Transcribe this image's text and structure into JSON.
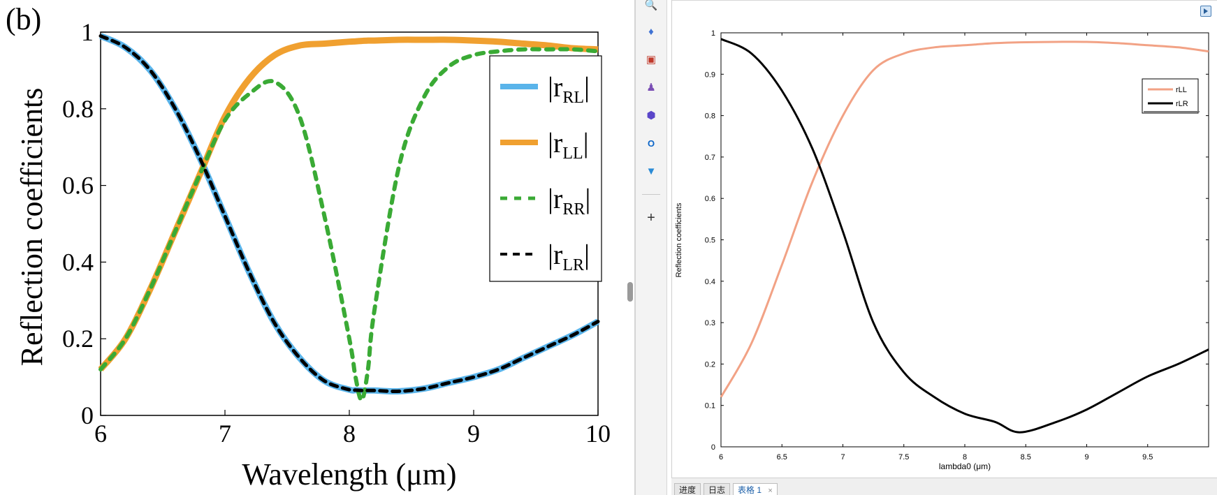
{
  "left_figure": {
    "panel_label": "(b)",
    "ylabel": "Reflection coefficients",
    "xlabel": "Wavelength (μm)",
    "x_ticks": [
      "6",
      "7",
      "8",
      "9",
      "10"
    ],
    "y_ticks": [
      "0",
      "0.2",
      "0.4",
      "0.6",
      "0.8",
      "1"
    ],
    "legend": [
      {
        "main": "|r",
        "sub": "RL",
        "end": "|"
      },
      {
        "main": "|r",
        "sub": "LL",
        "end": "|"
      },
      {
        "main": "|r",
        "sub": "RR",
        "end": "|"
      },
      {
        "main": "|r",
        "sub": "LR",
        "end": "|"
      }
    ]
  },
  "right_plot": {
    "ylabel": "Reflection coefficients",
    "xlabel": "lambda0 (μm)",
    "x_ticks": [
      "6",
      "6.5",
      "7",
      "7.5",
      "8",
      "8.5",
      "9",
      "9.5"
    ],
    "y_ticks": [
      "0",
      "0.1",
      "0.2",
      "0.3",
      "0.4",
      "0.5",
      "0.6",
      "0.7",
      "0.8",
      "0.9",
      "1"
    ],
    "legend": [
      "rLL",
      "rLR"
    ]
  },
  "toolbar": {
    "icons": [
      "search-icon",
      "tag-icon",
      "toolbox-icon",
      "users-icon",
      "cloud-sync-icon",
      "outlook-icon",
      "send-icon"
    ],
    "add_label": "+"
  },
  "bottom_tabs": [
    {
      "label": "进度"
    },
    {
      "label": "日志"
    },
    {
      "label": "表格 1",
      "close": "×"
    }
  ],
  "colors": {
    "rl": "#5ab4ea",
    "ll": "#f0a030",
    "rr": "#3aaa35",
    "lr": "#000000",
    "right_rll": "#f2a285",
    "right_rlr": "#000000"
  },
  "chart_data": [
    {
      "type": "line",
      "title": "(b)",
      "xlabel": "Wavelength (μm)",
      "ylabel": "Reflection coefficients",
      "xlim": [
        6,
        10
      ],
      "ylim": [
        0,
        1
      ],
      "grid": false,
      "legend_position": "top-right",
      "x": [
        6.0,
        6.2,
        6.4,
        6.6,
        6.8,
        7.0,
        7.2,
        7.4,
        7.6,
        7.8,
        8.0,
        8.05,
        8.1,
        8.15,
        8.2,
        8.4,
        8.6,
        8.8,
        9.0,
        9.2,
        9.4,
        9.6,
        9.8,
        10.0
      ],
      "series": [
        {
          "name": "|rRL|",
          "style": "solid",
          "values": [
            0.99,
            0.96,
            0.9,
            0.8,
            0.67,
            0.52,
            0.37,
            0.24,
            0.15,
            0.09,
            0.067,
            0.066,
            0.065,
            0.065,
            0.065,
            0.063,
            0.07,
            0.085,
            0.1,
            0.12,
            0.15,
            0.18,
            0.21,
            0.245
          ]
        },
        {
          "name": "|rLL|",
          "style": "solid",
          "values": [
            0.12,
            0.2,
            0.33,
            0.48,
            0.63,
            0.78,
            0.88,
            0.94,
            0.965,
            0.97,
            0.975,
            0.976,
            0.977,
            0.978,
            0.978,
            0.98,
            0.98,
            0.98,
            0.978,
            0.975,
            0.97,
            0.965,
            0.958,
            0.955
          ]
        },
        {
          "name": "|rRR|",
          "style": "dashed",
          "values": [
            0.12,
            0.2,
            0.33,
            0.48,
            0.63,
            0.77,
            0.84,
            0.87,
            0.78,
            0.52,
            0.2,
            0.1,
            0.04,
            0.12,
            0.27,
            0.65,
            0.83,
            0.91,
            0.94,
            0.95,
            0.955,
            0.955,
            0.955,
            0.95
          ]
        },
        {
          "name": "|rLR|",
          "style": "dashed",
          "values": [
            0.99,
            0.96,
            0.9,
            0.8,
            0.67,
            0.52,
            0.37,
            0.24,
            0.15,
            0.09,
            0.067,
            0.066,
            0.065,
            0.065,
            0.065,
            0.063,
            0.07,
            0.085,
            0.1,
            0.12,
            0.15,
            0.18,
            0.21,
            0.245
          ]
        }
      ]
    },
    {
      "type": "line",
      "title": "",
      "xlabel": "lambda0 (μm)",
      "ylabel": "Reflection coefficients",
      "xlim": [
        6,
        10
      ],
      "ylim": [
        0,
        1
      ],
      "grid": false,
      "legend_position": "top-right",
      "x": [
        6.0,
        6.25,
        6.5,
        6.75,
        7.0,
        7.25,
        7.5,
        7.75,
        8.0,
        8.25,
        8.45,
        8.75,
        9.0,
        9.25,
        9.5,
        9.75,
        10.0
      ],
      "series": [
        {
          "name": "rLL",
          "values": [
            0.12,
            0.25,
            0.44,
            0.64,
            0.8,
            0.91,
            0.95,
            0.965,
            0.97,
            0.975,
            0.977,
            0.978,
            0.978,
            0.975,
            0.97,
            0.965,
            0.955
          ]
        },
        {
          "name": "rLR",
          "values": [
            0.985,
            0.95,
            0.86,
            0.72,
            0.52,
            0.3,
            0.18,
            0.12,
            0.08,
            0.06,
            0.035,
            0.06,
            0.09,
            0.13,
            0.17,
            0.2,
            0.235
          ]
        }
      ]
    }
  ]
}
